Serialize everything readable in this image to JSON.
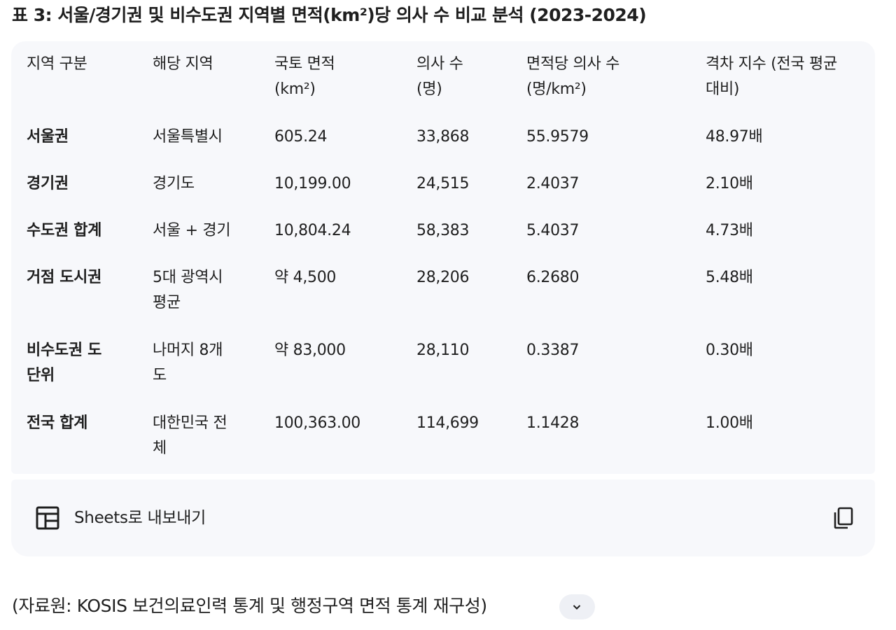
{
  "title": "표 3: 서울/경기권 및 비수도권 지역별 면적(km²)당 의사 수 비교 분석 (2023-2024)",
  "table": {
    "headers": [
      [
        "지역 구분"
      ],
      [
        "해당 지역"
      ],
      [
        "국토 면적",
        "(km²)"
      ],
      [
        "의사 수",
        "(명)"
      ],
      [
        "면적당 의사 수",
        "(명/km²)"
      ],
      [
        "격차 지수 (전국 평균",
        "대비)"
      ]
    ],
    "rows": [
      {
        "region": [
          "서울권"
        ],
        "area_name": [
          "서울특별시"
        ],
        "land": "605.24",
        "doctors": "33,868",
        "density": "55.9579",
        "index": "48.97배"
      },
      {
        "region": [
          "경기권"
        ],
        "area_name": [
          "경기도"
        ],
        "land": "10,199.00",
        "doctors": "24,515",
        "density": "2.4037",
        "index": "2.10배"
      },
      {
        "region": [
          "수도권 합계"
        ],
        "area_name": [
          "서울 + 경기"
        ],
        "land": "10,804.24",
        "doctors": "58,383",
        "density": "5.4037",
        "index": "4.73배"
      },
      {
        "region": [
          "거점 도시권"
        ],
        "area_name": [
          "5대 광역시",
          "평균"
        ],
        "land": "약 4,500",
        "doctors": "28,206",
        "density": "6.2680",
        "index": "5.48배"
      },
      {
        "region": [
          "비수도권 도",
          "단위"
        ],
        "area_name": [
          "나머지 8개",
          "도"
        ],
        "land": "약 83,000",
        "doctors": "28,110",
        "density": "0.3387",
        "index": "0.30배"
      },
      {
        "region": [
          "전국 합계"
        ],
        "area_name": [
          "대한민국 전",
          "체"
        ],
        "land": "100,363.00",
        "doctors": "114,699",
        "density": "1.1428",
        "index": "1.00배"
      }
    ]
  },
  "footer": {
    "export_label": "Sheets로 내보내기",
    "export_icon": "table-grid-icon",
    "copy_icon": "copy-icon"
  },
  "source": {
    "text": "(자료원: KOSIS 보건의료인력 통계 및 행정구역 면적 통계 재구성)",
    "expand_icon": "chevron-down-icon"
  }
}
